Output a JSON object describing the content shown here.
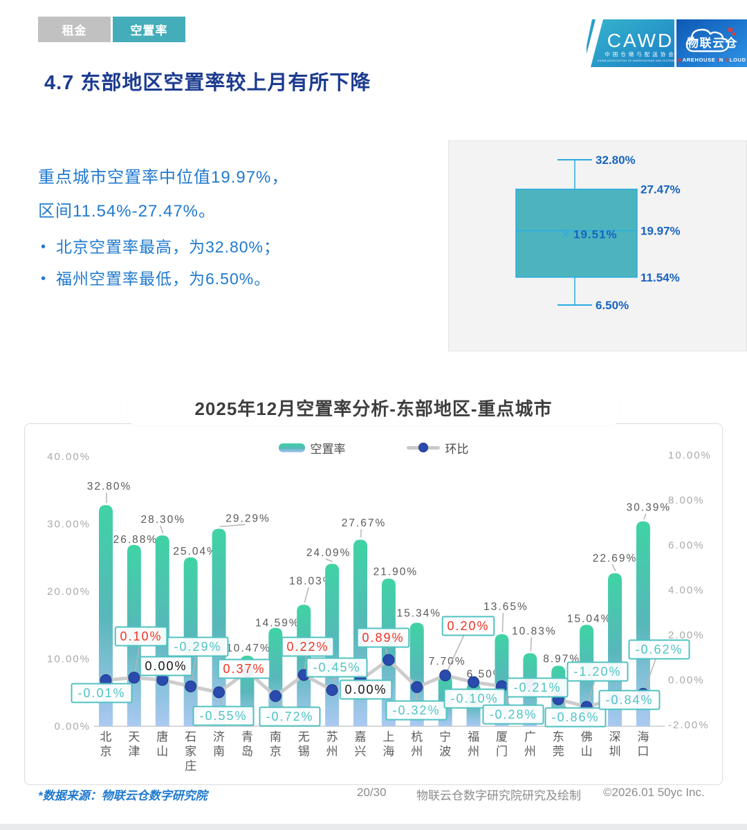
{
  "tabs": [
    {
      "label": "租金",
      "active": false
    },
    {
      "label": "空置率",
      "active": true
    }
  ],
  "logo": {
    "cawd_title": "CAWD",
    "cawd_cn": "中国仓储与配送协会",
    "cawd_en": "CHINA ASSOCIATION OF WAREHOUSING AND DISTRIBUTION",
    "wic_name": "物联云仓",
    "wic_parts": [
      "W",
      "AREHOUSE ",
      "I",
      "N ",
      "C",
      "LOUD"
    ]
  },
  "page_title": "4.7 东部地区空置率较上月有所下降",
  "summary": {
    "line1": "重点城市空置率中位值19.97%，",
    "line2": "区间11.54%-27.47%。",
    "bullets": [
      "北京空置率最高，为32.80%；",
      "福州空置率最低，为6.50%。"
    ]
  },
  "boxplot": {
    "max": 32.8,
    "q3": 27.47,
    "median": 19.97,
    "mean": 19.51,
    "q1": 11.54,
    "min": 6.5,
    "max_label": "32.80%",
    "q3_label": "27.47%",
    "median_label": "19.97%",
    "mean_marker": "×",
    "mean_label": "19.51%",
    "q1_label": "11.54%",
    "min_label": "6.50%"
  },
  "chart_title": "2025年12月空置率分析-东部地区-重点城市",
  "chart_data": {
    "type": "bar",
    "categories": [
      "北京",
      "天津",
      "唐山",
      "石家庄",
      "济南",
      "青岛",
      "南京",
      "无锡",
      "苏州",
      "嘉兴",
      "上海",
      "杭州",
      "宁波",
      "福州",
      "厦门",
      "广州",
      "东莞",
      "佛山",
      "深圳",
      "海口"
    ],
    "series": [
      {
        "name": "空置率",
        "type": "bar",
        "axis": "left",
        "values": [
          32.8,
          26.88,
          28.3,
          25.04,
          29.29,
          10.47,
          14.59,
          18.03,
          24.09,
          27.67,
          21.9,
          15.34,
          7.7,
          6.5,
          13.65,
          10.83,
          8.97,
          15.04,
          22.69,
          30.39
        ],
        "labels": [
          "32.80%",
          "26.88%",
          "28.30%",
          "25.04%",
          "29.29%",
          "10.47%",
          "14.59%",
          "18.03%",
          "24.09%",
          "27.67%",
          "21.90%",
          "15.34%",
          "7.70%",
          "6.50%",
          "13.65%",
          "10.83%",
          "8.97%",
          "15.04%",
          "22.69%",
          "30.39%"
        ]
      },
      {
        "name": "环比",
        "type": "line",
        "axis": "right",
        "values": [
          -0.01,
          0.1,
          0.0,
          -0.29,
          -0.55,
          0.37,
          -0.72,
          0.22,
          -0.45,
          0.0,
          0.89,
          -0.32,
          0.2,
          -0.1,
          -0.28,
          -0.21,
          -0.86,
          -1.2,
          -0.84,
          -0.62
        ],
        "labels": [
          "-0.01%",
          "0.10%",
          "0.00%",
          "-0.29%",
          "-0.55%",
          "0.37%",
          "-0.72%",
          "0.22%",
          "-0.45%",
          "0.00%",
          "0.89%",
          "-0.32%",
          "0.20%",
          "-0.10%",
          "-0.28%",
          "-0.21%",
          "-0.86%",
          "-1.20%",
          "-0.84%",
          "-0.62%"
        ]
      }
    ],
    "left_axis": {
      "labels": [
        "40.00%",
        "30.00%",
        "20.00%",
        "10.00%",
        "0.00%"
      ],
      "values": [
        40,
        30,
        20,
        10,
        0
      ],
      "min": 0,
      "max": 40
    },
    "right_axis": {
      "labels": [
        "10.00%",
        "8.00%",
        "6.00%",
        "4.00%",
        "2.00%",
        "0.00%",
        "-2.00%"
      ],
      "values": [
        10,
        8,
        6,
        4,
        2,
        0,
        -2
      ],
      "min": -2,
      "max": 10
    },
    "legend_position": "top",
    "grid": false,
    "colors": {
      "bar_top": "#3fd3a4",
      "bar_mid": "#57b7ba",
      "bar_bottom": "#abc9f2",
      "line": "#c9c9c9",
      "dot": "#2b4aad",
      "label_positive": "#ee3124",
      "label_negative": "#4ec3c3",
      "label_zero": "#141414",
      "label_box_border": "#4fc2c0",
      "bar_label": "#595959",
      "axis": "#a9a9a9"
    }
  },
  "footer": {
    "source_note": "*数据来源：物联云仓数字研究院",
    "page": "20/30",
    "credit": "物联云仓数字研究院研究及绘制",
    "copyright": "©2026.01 50yc Inc."
  }
}
